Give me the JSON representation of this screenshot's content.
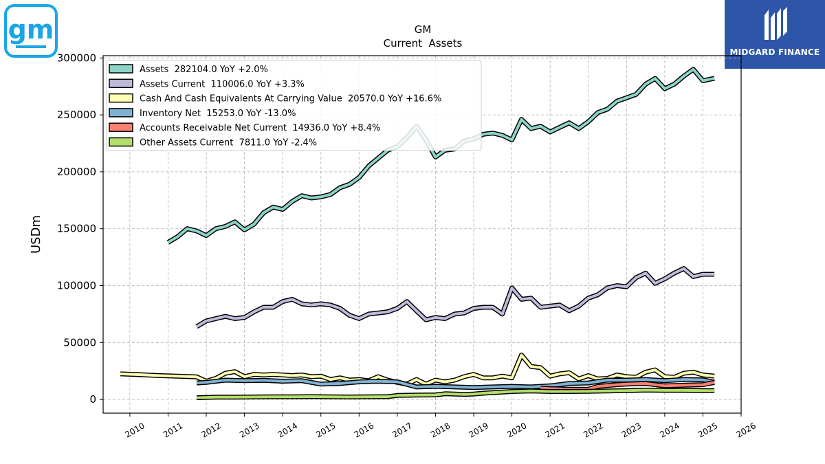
{
  "header": {
    "ticker": "GM",
    "subtitle": "Current  Assets",
    "logo_text": "gm",
    "brand_name": "MIDGARD FINANCE"
  },
  "colors": {
    "gm_logo": "#1aa6e6",
    "brand_bg": "#2d56a8",
    "assets": "#8dd3c7",
    "assets_current": "#bebada",
    "cash": "#ffffb3",
    "inventory": "#80b1d3",
    "receivables": "#fb8072",
    "other": "#b3de69"
  },
  "chart_data": {
    "type": "line",
    "title": "GM",
    "subtitle": "Current  Assets",
    "ylabel": "USDm",
    "xlim": [
      2009.3,
      2026.0
    ],
    "ylim": [
      -12000,
      302000
    ],
    "x_ticks": [
      "2010",
      "2011",
      "2012",
      "2013",
      "2014",
      "2015",
      "2016",
      "2017",
      "2018",
      "2019",
      "2020",
      "2021",
      "2022",
      "2023",
      "2024",
      "2025",
      "2026"
    ],
    "y_ticks": [
      "0",
      "50000",
      "100000",
      "150000",
      "200000",
      "250000",
      "300000"
    ],
    "grid": true,
    "legend_position": "top-left",
    "series": [
      {
        "name": "Assets",
        "legend": "Assets  282104.0 YoY +2.0%",
        "color": "#8dd3c7",
        "points": [
          [
            2011.0,
            138000
          ],
          [
            2011.25,
            143000
          ],
          [
            2011.5,
            150000
          ],
          [
            2011.75,
            148000
          ],
          [
            2012.0,
            144000
          ],
          [
            2012.25,
            150000
          ],
          [
            2012.5,
            152000
          ],
          [
            2012.75,
            156000
          ],
          [
            2013.0,
            149000
          ],
          [
            2013.25,
            154000
          ],
          [
            2013.5,
            164000
          ],
          [
            2013.75,
            169000
          ],
          [
            2014.0,
            167000
          ],
          [
            2014.25,
            174000
          ],
          [
            2014.5,
            179000
          ],
          [
            2014.75,
            177000
          ],
          [
            2015.0,
            178000
          ],
          [
            2015.25,
            180000
          ],
          [
            2015.5,
            186000
          ],
          [
            2015.75,
            189000
          ],
          [
            2016.0,
            195000
          ],
          [
            2016.25,
            205000
          ],
          [
            2016.5,
            212000
          ],
          [
            2016.75,
            219000
          ],
          [
            2017.0,
            222000
          ],
          [
            2017.25,
            230000
          ],
          [
            2017.5,
            240000
          ],
          [
            2017.75,
            228000
          ],
          [
            2018.0,
            213000
          ],
          [
            2018.25,
            219000
          ],
          [
            2018.5,
            220000
          ],
          [
            2018.75,
            227000
          ],
          [
            2019.0,
            229000
          ],
          [
            2019.25,
            233000
          ],
          [
            2019.5,
            234000
          ],
          [
            2019.75,
            232000
          ],
          [
            2020.0,
            228000
          ],
          [
            2020.25,
            246000
          ],
          [
            2020.5,
            238000
          ],
          [
            2020.75,
            240000
          ],
          [
            2021.0,
            235000
          ],
          [
            2021.25,
            239000
          ],
          [
            2021.5,
            243000
          ],
          [
            2021.75,
            238000
          ],
          [
            2022.0,
            244000
          ],
          [
            2022.25,
            252000
          ],
          [
            2022.5,
            255000
          ],
          [
            2022.75,
            262000
          ],
          [
            2023.0,
            265000
          ],
          [
            2023.25,
            268000
          ],
          [
            2023.5,
            277000
          ],
          [
            2023.75,
            282000
          ],
          [
            2024.0,
            273000
          ],
          [
            2024.25,
            277000
          ],
          [
            2024.5,
            284000
          ],
          [
            2024.75,
            290000
          ],
          [
            2025.0,
            280000
          ],
          [
            2025.3,
            282104
          ]
        ]
      },
      {
        "name": "Assets Current",
        "legend": "Assets Current  110006.0 YoY +3.3%",
        "color": "#bebada",
        "points": [
          [
            2011.75,
            64000
          ],
          [
            2012.0,
            69000
          ],
          [
            2012.25,
            71000
          ],
          [
            2012.5,
            73000
          ],
          [
            2012.75,
            71000
          ],
          [
            2013.0,
            72000
          ],
          [
            2013.25,
            77000
          ],
          [
            2013.5,
            81000
          ],
          [
            2013.75,
            81000
          ],
          [
            2014.0,
            86000
          ],
          [
            2014.25,
            88000
          ],
          [
            2014.5,
            84000
          ],
          [
            2014.75,
            83000
          ],
          [
            2015.0,
            84000
          ],
          [
            2015.25,
            83000
          ],
          [
            2015.5,
            80000
          ],
          [
            2015.75,
            74000
          ],
          [
            2016.0,
            71000
          ],
          [
            2016.25,
            75000
          ],
          [
            2016.5,
            76000
          ],
          [
            2016.75,
            77000
          ],
          [
            2017.0,
            80000
          ],
          [
            2017.25,
            86000
          ],
          [
            2017.5,
            78000
          ],
          [
            2017.75,
            70000
          ],
          [
            2018.0,
            72000
          ],
          [
            2018.25,
            71000
          ],
          [
            2018.5,
            75000
          ],
          [
            2018.75,
            76000
          ],
          [
            2019.0,
            80000
          ],
          [
            2019.25,
            81000
          ],
          [
            2019.5,
            81000
          ],
          [
            2019.75,
            75000
          ],
          [
            2020.0,
            98000
          ],
          [
            2020.25,
            88000
          ],
          [
            2020.5,
            89000
          ],
          [
            2020.75,
            81000
          ],
          [
            2021.0,
            82000
          ],
          [
            2021.25,
            83000
          ],
          [
            2021.5,
            78000
          ],
          [
            2021.75,
            82000
          ],
          [
            2022.0,
            89000
          ],
          [
            2022.25,
            92000
          ],
          [
            2022.5,
            98000
          ],
          [
            2022.75,
            100000
          ],
          [
            2023.0,
            99000
          ],
          [
            2023.25,
            107000
          ],
          [
            2023.5,
            111000
          ],
          [
            2023.75,
            102000
          ],
          [
            2024.0,
            106000
          ],
          [
            2024.25,
            111000
          ],
          [
            2024.5,
            115000
          ],
          [
            2024.75,
            108000
          ],
          [
            2025.0,
            110000
          ],
          [
            2025.3,
            110006
          ]
        ]
      },
      {
        "name": "Cash And Cash Equivalents At Carrying Value",
        "legend": "Cash And Cash Equivalents At Carrying Value  20570.0 YoY +16.6%",
        "color": "#ffffb3",
        "points": [
          [
            2009.75,
            22500
          ],
          [
            2010.25,
            21800
          ],
          [
            2010.75,
            21000
          ],
          [
            2011.25,
            20500
          ],
          [
            2011.75,
            19800
          ],
          [
            2012.0,
            16000
          ],
          [
            2012.25,
            18500
          ],
          [
            2012.5,
            23000
          ],
          [
            2012.75,
            24500
          ],
          [
            2013.0,
            20000
          ],
          [
            2013.25,
            22000
          ],
          [
            2013.5,
            21500
          ],
          [
            2013.75,
            22000
          ],
          [
            2014.0,
            21500
          ],
          [
            2014.25,
            21000
          ],
          [
            2014.5,
            21500
          ],
          [
            2014.75,
            20000
          ],
          [
            2015.0,
            20500
          ],
          [
            2015.25,
            17500
          ],
          [
            2015.5,
            19000
          ],
          [
            2015.75,
            17000
          ],
          [
            2016.0,
            17500
          ],
          [
            2016.25,
            16500
          ],
          [
            2016.5,
            20000
          ],
          [
            2016.75,
            17000
          ],
          [
            2017.0,
            15000
          ],
          [
            2017.25,
            13500
          ],
          [
            2017.5,
            17500
          ],
          [
            2017.75,
            13500
          ],
          [
            2018.0,
            17000
          ],
          [
            2018.25,
            15500
          ],
          [
            2018.5,
            17000
          ],
          [
            2018.75,
            20000
          ],
          [
            2019.0,
            22000
          ],
          [
            2019.25,
            19000
          ],
          [
            2019.5,
            19000
          ],
          [
            2019.75,
            20500
          ],
          [
            2020.0,
            19000
          ],
          [
            2020.25,
            39000
          ],
          [
            2020.5,
            29000
          ],
          [
            2020.75,
            28000
          ],
          [
            2021.0,
            20500
          ],
          [
            2021.25,
            22500
          ],
          [
            2021.5,
            23500
          ],
          [
            2021.75,
            18000
          ],
          [
            2022.0,
            21000
          ],
          [
            2022.25,
            18000
          ],
          [
            2022.5,
            18500
          ],
          [
            2022.75,
            21500
          ],
          [
            2023.0,
            20000
          ],
          [
            2023.25,
            19500
          ],
          [
            2023.5,
            24000
          ],
          [
            2023.75,
            26000
          ],
          [
            2024.0,
            20000
          ],
          [
            2024.25,
            19500
          ],
          [
            2024.5,
            23000
          ],
          [
            2024.75,
            24000
          ],
          [
            2025.0,
            21500
          ],
          [
            2025.3,
            20570
          ]
        ]
      },
      {
        "name": "Inventory Net",
        "legend": "Inventory Net  15253.0 YoY -13.0%",
        "color": "#80b1d3",
        "points": [
          [
            2011.75,
            14500
          ],
          [
            2012.0,
            15000
          ],
          [
            2012.5,
            17000
          ],
          [
            2013.0,
            16500
          ],
          [
            2013.5,
            16800
          ],
          [
            2014.0,
            16000
          ],
          [
            2014.5,
            16500
          ],
          [
            2015.0,
            13500
          ],
          [
            2015.5,
            14000
          ],
          [
            2016.0,
            15500
          ],
          [
            2016.5,
            16000
          ],
          [
            2017.0,
            15500
          ],
          [
            2017.5,
            11000
          ],
          [
            2018.0,
            11500
          ],
          [
            2018.5,
            11000
          ],
          [
            2019.0,
            10500
          ],
          [
            2019.5,
            11000
          ],
          [
            2020.0,
            11500
          ],
          [
            2020.5,
            11000
          ],
          [
            2021.0,
            12000
          ],
          [
            2021.5,
            14000
          ],
          [
            2022.0,
            14500
          ],
          [
            2022.5,
            17000
          ],
          [
            2023.0,
            17000
          ],
          [
            2023.5,
            17500
          ],
          [
            2024.0,
            16500
          ],
          [
            2024.5,
            17500
          ],
          [
            2025.0,
            17200
          ],
          [
            2025.3,
            15253
          ]
        ]
      },
      {
        "name": "Accounts Receivable Net Current",
        "legend": "Accounts Receivable Net Current  14936.0 YoY +8.4%",
        "color": "#fb8072",
        "points": [
          [
            2020.75,
            10000
          ],
          [
            2021.0,
            9500
          ],
          [
            2021.5,
            9000
          ],
          [
            2022.0,
            9000
          ],
          [
            2022.25,
            11500
          ],
          [
            2022.75,
            13000
          ],
          [
            2023.0,
            13500
          ],
          [
            2023.5,
            14000
          ],
          [
            2024.0,
            12000
          ],
          [
            2024.5,
            12500
          ],
          [
            2025.0,
            13000
          ],
          [
            2025.3,
            14936
          ]
        ]
      },
      {
        "name": "Other Assets Current",
        "legend": "Other Assets Current  7811.0 YoY -2.4%",
        "color": "#b3de69",
        "points": [
          [
            2011.75,
            1500
          ],
          [
            2012.25,
            2000
          ],
          [
            2012.75,
            2000
          ],
          [
            2013.25,
            2200
          ],
          [
            2013.75,
            2400
          ],
          [
            2014.25,
            2300
          ],
          [
            2014.75,
            2500
          ],
          [
            2015.25,
            2400
          ],
          [
            2015.75,
            2200
          ],
          [
            2016.25,
            2300
          ],
          [
            2016.75,
            2500
          ],
          [
            2017.0,
            3500
          ],
          [
            2017.5,
            3800
          ],
          [
            2018.0,
            4000
          ],
          [
            2018.25,
            5000
          ],
          [
            2018.75,
            4500
          ],
          [
            2019.0,
            4800
          ],
          [
            2019.25,
            5500
          ],
          [
            2019.75,
            6500
          ],
          [
            2020.0,
            7000
          ],
          [
            2020.5,
            7500
          ],
          [
            2021.0,
            7000
          ],
          [
            2021.5,
            7000
          ],
          [
            2022.0,
            7200
          ],
          [
            2022.5,
            7500
          ],
          [
            2023.0,
            7800
          ],
          [
            2023.5,
            8200
          ],
          [
            2024.0,
            8000
          ],
          [
            2024.5,
            8000
          ],
          [
            2025.0,
            7800
          ],
          [
            2025.3,
            7811
          ]
        ]
      }
    ]
  }
}
